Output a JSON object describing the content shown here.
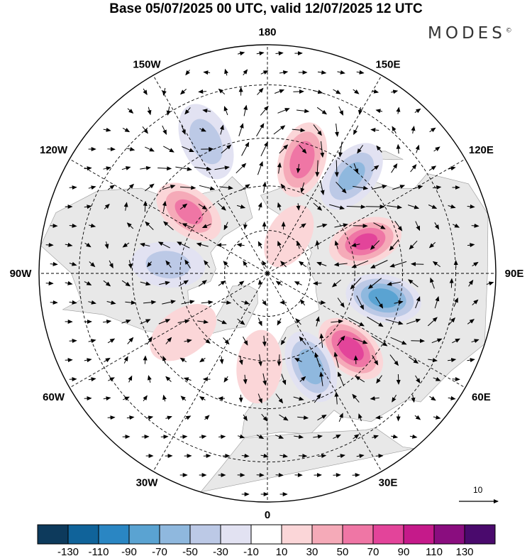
{
  "title": "Base 05/07/2025 00 UTC, valid 12/07/2025 12 UTC",
  "brand": {
    "name": "MODES",
    "mark": "©"
  },
  "map": {
    "projection": "north-polar-stereographic",
    "longitude_labels": [
      {
        "lon": 0,
        "text": "0"
      },
      {
        "lon": 30,
        "text": "30E"
      },
      {
        "lon": 60,
        "text": "60E"
      },
      {
        "lon": 90,
        "text": "90E"
      },
      {
        "lon": 120,
        "text": "120E"
      },
      {
        "lon": 150,
        "text": "150E"
      },
      {
        "lon": 180,
        "text": "180"
      },
      {
        "lon": -150,
        "text": "150W"
      },
      {
        "lon": -120,
        "text": "120W"
      },
      {
        "lon": -90,
        "text": "90W"
      },
      {
        "lon": -60,
        "text": "60W"
      },
      {
        "lon": -30,
        "text": "30W"
      }
    ],
    "anomalies": [
      {
        "lon": 163,
        "lat": 50,
        "value": 70
      },
      {
        "lon": 139,
        "lat": 47,
        "value": -60
      },
      {
        "lon": -155,
        "lat": 42,
        "value": -40
      },
      {
        "lon": -128,
        "lat": 56,
        "value": 60
      },
      {
        "lon": -95,
        "lat": 56,
        "value": -40
      },
      {
        "lon": -55,
        "lat": 55,
        "value": 30
      },
      {
        "lon": 108,
        "lat": 55,
        "value": 80
      },
      {
        "lon": 78,
        "lat": 50,
        "value": -90
      },
      {
        "lon": 48,
        "lat": 52,
        "value": 90
      },
      {
        "lon": 25,
        "lat": 55,
        "value": -70
      },
      {
        "lon": -5,
        "lat": 58,
        "value": 20
      },
      {
        "lon": 150,
        "lat": 75,
        "value": 20
      }
    ]
  },
  "reference_vector": {
    "label": "10"
  },
  "colorbar": {
    "ticks": [
      "-130",
      "-110",
      "-90",
      "-70",
      "-50",
      "-30",
      "-10",
      "10",
      "30",
      "50",
      "70",
      "90",
      "110",
      "130"
    ],
    "colors": [
      "#0d3a5c",
      "#10639a",
      "#2a86c3",
      "#5aa3d2",
      "#8fb8de",
      "#bcc9e6",
      "#e2e2f2",
      "#ffffff",
      "#fbd6d8",
      "#f5aab8",
      "#ef76a5",
      "#e3449a",
      "#c51a8a",
      "#8a0d7f",
      "#4a0a6d"
    ]
  }
}
